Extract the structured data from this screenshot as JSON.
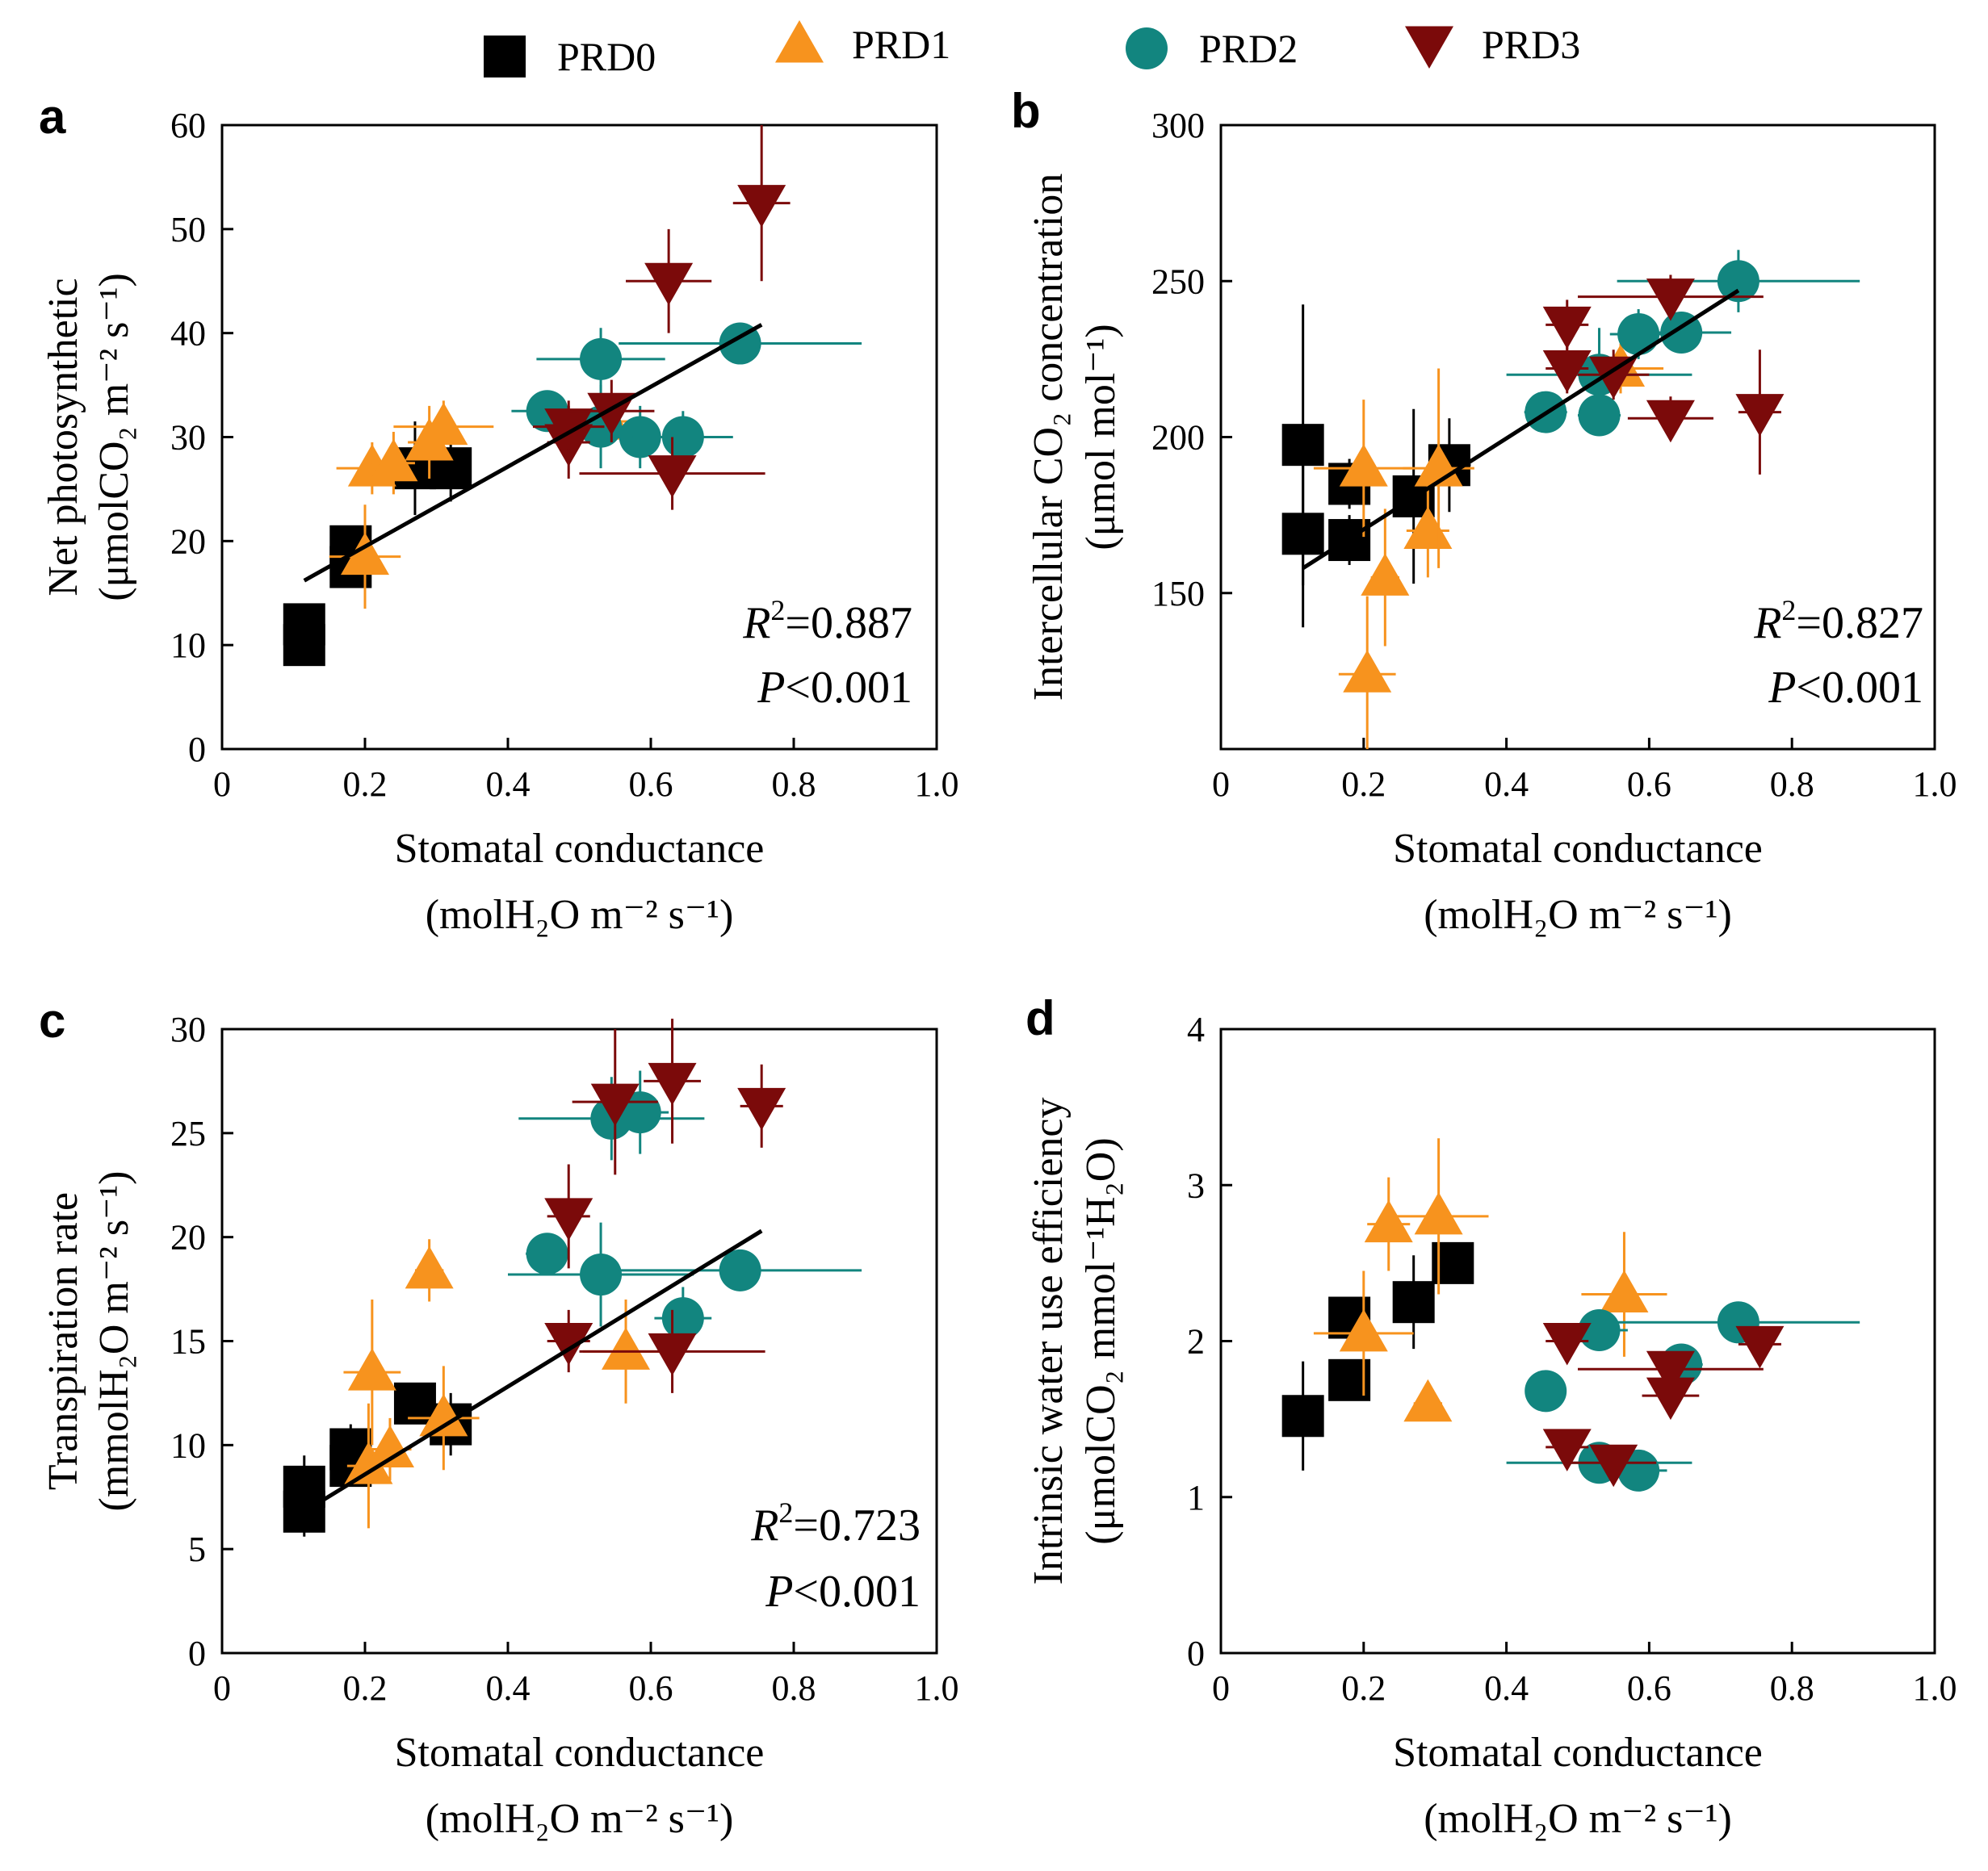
{
  "colors": {
    "PRD0": "#000000",
    "PRD1": "#f7931e",
    "PRD2": "#12857f",
    "PRD3": "#7b0a0a"
  },
  "legend": [
    {
      "name": "PRD0",
      "marker": "square-icon"
    },
    {
      "name": "PRD1",
      "marker": "triangle-up-icon"
    },
    {
      "name": "PRD2",
      "marker": "circle-icon"
    },
    {
      "name": "PRD3",
      "marker": "triangle-down-icon"
    }
  ],
  "chart_data": [
    {
      "panel": "a",
      "type": "scatter",
      "xlabel": "Stomatal conductance",
      "xunit": "(molH₂O m⁻² s⁻¹)",
      "ylabel": "Net photosynthetic",
      "yunit": "(μmolCO₂ m⁻² s⁻¹)",
      "xlim": [
        0,
        1.0
      ],
      "ylim": [
        0,
        60
      ],
      "xticks": [
        0,
        0.2,
        0.4,
        0.6,
        0.8,
        1.0
      ],
      "xtick_labels": [
        "0",
        "0.2",
        "0.4",
        "0.6",
        "0.8",
        "1.0"
      ],
      "yticks": [
        0,
        10,
        20,
        30,
        40,
        50,
        60
      ],
      "ytick_labels": [
        "0",
        "10",
        "20",
        "30",
        "40",
        "50",
        "60"
      ],
      "stat_r2": "=0.887",
      "stat_p": "<0.001",
      "fit": {
        "x": [
          0.115,
          0.755
        ],
        "y": [
          16.2,
          40.8
        ]
      },
      "series": [
        {
          "name": "PRD0",
          "points": [
            {
              "x": 0.115,
              "y": 10.0,
              "xerr": 0.02,
              "yerr": 1.2
            },
            {
              "x": 0.115,
              "y": 12.0,
              "xerr": 0.02,
              "yerr": 1.2
            },
            {
              "x": 0.18,
              "y": 17.5,
              "xerr": 0.02,
              "yerr": 2.0
            },
            {
              "x": 0.18,
              "y": 19.5,
              "xerr": 0.02,
              "yerr": 1.8
            },
            {
              "x": 0.27,
              "y": 27.0,
              "xerr": 0.02,
              "yerr": 4.5
            },
            {
              "x": 0.32,
              "y": 27.0,
              "xerr": 0.025,
              "yerr": 3.2
            }
          ]
        },
        {
          "name": "PRD1",
          "points": [
            {
              "x": 0.2,
              "y": 18.5,
              "xerr": 0.05,
              "yerr": 5.0
            },
            {
              "x": 0.21,
              "y": 27.0,
              "xerr": 0.05,
              "yerr": 2.5
            },
            {
              "x": 0.24,
              "y": 27.5,
              "xerr": 0.03,
              "yerr": 3.0
            },
            {
              "x": 0.29,
              "y": 29.5,
              "xerr": 0.03,
              "yerr": 3.5
            },
            {
              "x": 0.31,
              "y": 31.0,
              "xerr": 0.07,
              "yerr": 2.5
            },
            {
              "x": 0.54,
              "y": 31.5,
              "xerr": 0.03,
              "yerr": 2.0
            }
          ]
        },
        {
          "name": "PRD2",
          "points": [
            {
              "x": 0.455,
              "y": 32.5,
              "xerr": 0.05,
              "yerr": 1.5
            },
            {
              "x": 0.53,
              "y": 37.5,
              "xerr": 0.09,
              "yerr": 3.0
            },
            {
              "x": 0.53,
              "y": 31.0,
              "xerr": 0.05,
              "yerr": 4.0
            },
            {
              "x": 0.585,
              "y": 30.0,
              "xerr": 0.04,
              "yerr": 3.0
            },
            {
              "x": 0.645,
              "y": 30.0,
              "xerr": 0.07,
              "yerr": 2.5
            },
            {
              "x": 0.725,
              "y": 39.0,
              "xerr": 0.17,
              "yerr": 2.0
            }
          ]
        },
        {
          "name": "PRD3",
          "points": [
            {
              "x": 0.485,
              "y": 29.5,
              "xerr": 0.03,
              "yerr": 3.5
            },
            {
              "x": 0.485,
              "y": 31.0,
              "xerr": 0.05,
              "yerr": 2.5
            },
            {
              "x": 0.545,
              "y": 32.5,
              "xerr": 0.06,
              "yerr": 3.0
            },
            {
              "x": 0.625,
              "y": 45.0,
              "xerr": 0.06,
              "yerr": 5.0
            },
            {
              "x": 0.63,
              "y": 26.5,
              "xerr": 0.13,
              "yerr": 3.5
            },
            {
              "x": 0.755,
              "y": 52.5,
              "xerr": 0.04,
              "yerr": 7.5
            }
          ]
        }
      ]
    },
    {
      "panel": "b",
      "type": "scatter",
      "xlabel": "Stomatal conductance",
      "xunit": "(molH₂O m⁻² s⁻¹)",
      "ylabel": "Intercellular CO₂ concentration",
      "yunit": "(μmol mol⁻¹)",
      "xlim": [
        0,
        1.0
      ],
      "ylim": [
        100,
        300
      ],
      "xticks": [
        0,
        0.2,
        0.4,
        0.6,
        0.8,
        1.0
      ],
      "xtick_labels": [
        "0",
        "0.2",
        "0.4",
        "0.6",
        "0.8",
        "1.0"
      ],
      "yticks": [
        150,
        200,
        250,
        300
      ],
      "ytick_labels": [
        "150",
        "200",
        "250",
        "300"
      ],
      "stat_r2": "=0.827",
      "stat_p": "<0.001",
      "fit": {
        "x": [
          0.115,
          0.725
        ],
        "y": [
          158,
          247
        ]
      },
      "series": [
        {
          "name": "PRD0",
          "points": [
            {
              "x": 0.115,
              "y": 197.5,
              "xerr": 0.02,
              "yerr": 45
            },
            {
              "x": 0.115,
              "y": 169.0,
              "xerr": 0.02,
              "yerr": 30
            },
            {
              "x": 0.18,
              "y": 185.0,
              "xerr": 0.02,
              "yerr": 8
            },
            {
              "x": 0.18,
              "y": 167.0,
              "xerr": 0.02,
              "yerr": 8
            },
            {
              "x": 0.27,
              "y": 181.0,
              "xerr": 0.02,
              "yerr": 28
            },
            {
              "x": 0.32,
              "y": 191.0,
              "xerr": 0.03,
              "yerr": 15
            }
          ]
        },
        {
          "name": "PRD1",
          "points": [
            {
              "x": 0.205,
              "y": 124.0,
              "xerr": 0.04,
              "yerr": 25
            },
            {
              "x": 0.2,
              "y": 190.0,
              "xerr": 0.07,
              "yerr": 22
            },
            {
              "x": 0.23,
              "y": 155.0,
              "xerr": 0.02,
              "yerr": 22
            },
            {
              "x": 0.29,
              "y": 170.0,
              "xerr": 0.03,
              "yerr": 15
            },
            {
              "x": 0.305,
              "y": 190.0,
              "xerr": 0.05,
              "yerr": 32
            },
            {
              "x": 0.56,
              "y": 222.0,
              "xerr": 0.06,
              "yerr": 8
            }
          ]
        },
        {
          "name": "PRD2",
          "points": [
            {
              "x": 0.455,
              "y": 208.0,
              "xerr": 0.03,
              "yerr": 5
            },
            {
              "x": 0.53,
              "y": 220.0,
              "xerr": 0.13,
              "yerr": 15
            },
            {
              "x": 0.53,
              "y": 207.0,
              "xerr": 0.03,
              "yerr": 5
            },
            {
              "x": 0.585,
              "y": 233.0,
              "xerr": 0.04,
              "yerr": 8
            },
            {
              "x": 0.645,
              "y": 233.5,
              "xerr": 0.07,
              "yerr": 6
            },
            {
              "x": 0.725,
              "y": 250.0,
              "xerr": 0.17,
              "yerr": 10
            }
          ]
        },
        {
          "name": "PRD3",
          "points": [
            {
              "x": 0.485,
              "y": 222.0,
              "xerr": 0.03,
              "yerr": 8
            },
            {
              "x": 0.485,
              "y": 236.0,
              "xerr": 0.03,
              "yerr": 8
            },
            {
              "x": 0.55,
              "y": 220.0,
              "xerr": 0.05,
              "yerr": 8
            },
            {
              "x": 0.63,
              "y": 245.0,
              "xerr": 0.13,
              "yerr": 7
            },
            {
              "x": 0.63,
              "y": 206.0,
              "xerr": 0.06,
              "yerr": 7
            },
            {
              "x": 0.755,
              "y": 208.0,
              "xerr": 0.03,
              "yerr": 20
            }
          ]
        }
      ]
    },
    {
      "panel": "c",
      "type": "scatter",
      "xlabel": "Stomatal conductance",
      "xunit": "(molH₂O m⁻² s⁻¹)",
      "ylabel": "Transpiration rate",
      "yunit": "(mmolH₂O m⁻² s⁻¹)",
      "xlim": [
        0,
        1.0
      ],
      "ylim": [
        0,
        30
      ],
      "xticks": [
        0,
        0.2,
        0.4,
        0.6,
        0.8,
        1.0
      ],
      "xtick_labels": [
        "0",
        "0.2",
        "0.4",
        "0.6",
        "0.8",
        "1.0"
      ],
      "yticks": [
        0,
        5,
        10,
        15,
        20,
        25,
        30
      ],
      "ytick_labels": [
        "0",
        "5",
        "10",
        "15",
        "20",
        "25",
        "30"
      ],
      "stat_r2": "=0.723",
      "stat_p": "<0.001",
      "fit": {
        "x": [
          0.115,
          0.755
        ],
        "y": [
          6.8,
          20.3
        ]
      },
      "series": [
        {
          "name": "PRD0",
          "points": [
            {
              "x": 0.115,
              "y": 6.8,
              "xerr": 0.02,
              "yerr": 1.2
            },
            {
              "x": 0.115,
              "y": 8.0,
              "xerr": 0.02,
              "yerr": 1.5
            },
            {
              "x": 0.18,
              "y": 9.8,
              "xerr": 0.02,
              "yerr": 1.2
            },
            {
              "x": 0.18,
              "y": 9.0,
              "xerr": 0.02,
              "yerr": 1.0
            },
            {
              "x": 0.27,
              "y": 12.0,
              "xerr": 0.02,
              "yerr": 0.8
            },
            {
              "x": 0.32,
              "y": 11.0,
              "xerr": 0.02,
              "yerr": 1.5
            }
          ]
        },
        {
          "name": "PRD1",
          "points": [
            {
              "x": 0.205,
              "y": 9.0,
              "xerr": 0.03,
              "yerr": 3.0
            },
            {
              "x": 0.21,
              "y": 13.5,
              "xerr": 0.04,
              "yerr": 3.5
            },
            {
              "x": 0.235,
              "y": 9.8,
              "xerr": 0.03,
              "yerr": 1.5
            },
            {
              "x": 0.29,
              "y": 18.4,
              "xerr": 0.02,
              "yerr": 1.5
            },
            {
              "x": 0.31,
              "y": 11.3,
              "xerr": 0.05,
              "yerr": 2.5
            },
            {
              "x": 0.565,
              "y": 14.5,
              "xerr": 0.06,
              "yerr": 2.5
            }
          ]
        },
        {
          "name": "PRD2",
          "points": [
            {
              "x": 0.455,
              "y": 19.2,
              "xerr": 0.03,
              "yerr": 1.0
            },
            {
              "x": 0.53,
              "y": 18.2,
              "xerr": 0.13,
              "yerr": 2.5
            },
            {
              "x": 0.545,
              "y": 25.7,
              "xerr": 0.13,
              "yerr": 2.0
            },
            {
              "x": 0.585,
              "y": 26.0,
              "xerr": 0.04,
              "yerr": 2.0
            },
            {
              "x": 0.645,
              "y": 16.1,
              "xerr": 0.04,
              "yerr": 1.5
            },
            {
              "x": 0.725,
              "y": 18.4,
              "xerr": 0.17,
              "yerr": 1.0
            }
          ]
        },
        {
          "name": "PRD3",
          "points": [
            {
              "x": 0.485,
              "y": 21.0,
              "xerr": 0.03,
              "yerr": 2.5
            },
            {
              "x": 0.485,
              "y": 15.0,
              "xerr": 0.03,
              "yerr": 1.5
            },
            {
              "x": 0.55,
              "y": 26.5,
              "xerr": 0.06,
              "yerr": 3.5
            },
            {
              "x": 0.63,
              "y": 27.5,
              "xerr": 0.04,
              "yerr": 3.0
            },
            {
              "x": 0.63,
              "y": 14.5,
              "xerr": 0.13,
              "yerr": 2.0
            },
            {
              "x": 0.755,
              "y": 26.3,
              "xerr": 0.03,
              "yerr": 2.0
            }
          ]
        }
      ]
    },
    {
      "panel": "d",
      "type": "scatter",
      "xlabel": "Stomatal conductance",
      "xunit": "(molH₂O m⁻² s⁻¹)",
      "ylabel": "Intrinsic water use efficiency",
      "yunit": "(μmolCO₂ mmol⁻¹H₂O)",
      "xlim": [
        0,
        1.0
      ],
      "ylim": [
        0,
        4
      ],
      "xticks": [
        0,
        0.2,
        0.4,
        0.6,
        0.8,
        1.0
      ],
      "xtick_labels": [
        "0",
        "0.2",
        "0.4",
        "0.6",
        "0.8",
        "1.0"
      ],
      "yticks": [
        0,
        1,
        2,
        3,
        4
      ],
      "ytick_labels": [
        "0",
        "1",
        "2",
        "3",
        "4"
      ],
      "stat_r2": null,
      "stat_p": null,
      "fit": null,
      "series": [
        {
          "name": "PRD0",
          "points": [
            {
              "x": 0.115,
              "y": 1.52,
              "xerr": 0.02,
              "yerr": 0.35
            },
            {
              "x": 0.18,
              "y": 1.75,
              "xerr": 0.02,
              "yerr": 0.08
            },
            {
              "x": 0.18,
              "y": 2.15,
              "xerr": 0.02,
              "yerr": 0.1
            },
            {
              "x": 0.27,
              "y": 2.25,
              "xerr": 0.02,
              "yerr": 0.3
            },
            {
              "x": 0.325,
              "y": 2.5,
              "xerr": 0.02,
              "yerr": 0.1
            }
          ]
        },
        {
          "name": "PRD1",
          "points": [
            {
              "x": 0.2,
              "y": 2.05,
              "xerr": 0.07,
              "yerr": 0.4
            },
            {
              "x": 0.235,
              "y": 2.75,
              "xerr": 0.03,
              "yerr": 0.3
            },
            {
              "x": 0.29,
              "y": 1.6,
              "xerr": 0.02,
              "yerr": 0.05
            },
            {
              "x": 0.305,
              "y": 2.8,
              "xerr": 0.07,
              "yerr": 0.5
            },
            {
              "x": 0.565,
              "y": 2.3,
              "xerr": 0.06,
              "yerr": 0.4
            }
          ]
        },
        {
          "name": "PRD2",
          "points": [
            {
              "x": 0.455,
              "y": 1.68,
              "xerr": 0.02,
              "yerr": 0.05
            },
            {
              "x": 0.53,
              "y": 2.07,
              "xerr": 0.04,
              "yerr": 0.05
            },
            {
              "x": 0.53,
              "y": 1.22,
              "xerr": 0.13,
              "yerr": 0.05
            },
            {
              "x": 0.585,
              "y": 1.17,
              "xerr": 0.04,
              "yerr": 0.05
            },
            {
              "x": 0.645,
              "y": 1.85,
              "xerr": 0.03,
              "yerr": 0.05
            },
            {
              "x": 0.725,
              "y": 2.12,
              "xerr": 0.17,
              "yerr": 0.05
            }
          ]
        },
        {
          "name": "PRD3",
          "points": [
            {
              "x": 0.485,
              "y": 1.32,
              "xerr": 0.03,
              "yerr": 0.05
            },
            {
              "x": 0.485,
              "y": 2.0,
              "xerr": 0.03,
              "yerr": 0.05
            },
            {
              "x": 0.55,
              "y": 1.22,
              "xerr": 0.06,
              "yerr": 0.05
            },
            {
              "x": 0.63,
              "y": 1.82,
              "xerr": 0.13,
              "yerr": 0.05
            },
            {
              "x": 0.63,
              "y": 1.65,
              "xerr": 0.04,
              "yerr": 0.05
            },
            {
              "x": 0.755,
              "y": 1.98,
              "xerr": 0.03,
              "yerr": 0.05
            }
          ]
        }
      ]
    }
  ]
}
